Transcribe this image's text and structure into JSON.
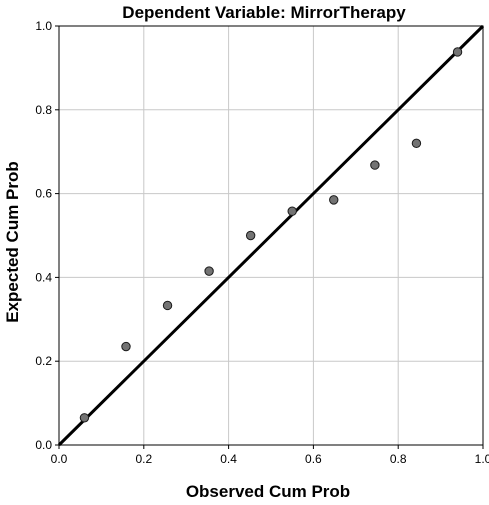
{
  "chart_data": {
    "type": "scatter",
    "title": "Dependent Variable: MirrorTherapy",
    "xlabel": "Observed Cum Prob",
    "ylabel": "Expected Cum Prob",
    "xlim": [
      0,
      1
    ],
    "ylim": [
      0,
      1
    ],
    "x_ticks": [
      "0.0",
      "0.2",
      "0.4",
      "0.6",
      "0.8",
      "1.0"
    ],
    "y_ticks": [
      "0.0",
      "0.2",
      "0.4",
      "0.6",
      "0.8",
      "1.0"
    ],
    "grid": true,
    "reference_line": {
      "from": [
        0,
        0
      ],
      "to": [
        1,
        1
      ]
    },
    "points": [
      {
        "x": 0.06,
        "y": 0.065
      },
      {
        "x": 0.158,
        "y": 0.235
      },
      {
        "x": 0.256,
        "y": 0.333
      },
      {
        "x": 0.354,
        "y": 0.415
      },
      {
        "x": 0.452,
        "y": 0.5
      },
      {
        "x": 0.55,
        "y": 0.558
      },
      {
        "x": 0.648,
        "y": 0.585
      },
      {
        "x": 0.745,
        "y": 0.668
      },
      {
        "x": 0.843,
        "y": 0.72
      },
      {
        "x": 0.94,
        "y": 0.938
      }
    ],
    "colors": {
      "marker_fill": "#737373",
      "marker_stroke": "#1a1a1a",
      "line": "#000000",
      "grid": "#c8c8c8",
      "frame": "#000000"
    }
  }
}
